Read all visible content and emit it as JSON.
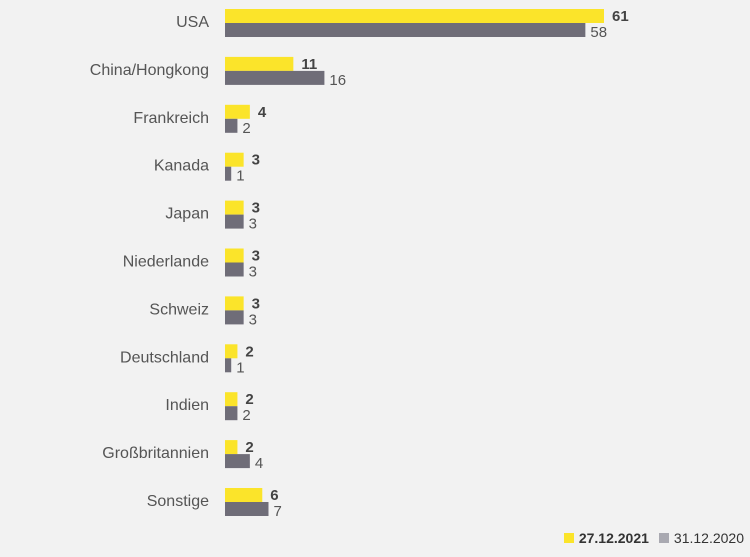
{
  "chart_data": {
    "type": "bar",
    "orientation": "horizontal",
    "categories": [
      "USA",
      "China/Hongkong",
      "Frankreich",
      "Kanada",
      "Japan",
      "Niederlande",
      "Schweiz",
      "Deutschland",
      "Indien",
      "Großbritannien",
      "Sonstige"
    ],
    "series": [
      {
        "name": "27.12.2021",
        "values": [
          61,
          11,
          4,
          3,
          3,
          3,
          3,
          2,
          2,
          2,
          6
        ],
        "color": "#fbe42a"
      },
      {
        "name": "31.12.2020",
        "values": [
          58,
          16,
          2,
          1,
          3,
          3,
          3,
          1,
          2,
          4,
          7
        ],
        "color": "#6f6d78"
      }
    ],
    "xlim": [
      0,
      61
    ],
    "grid": false,
    "legend_position": "bottom-right"
  },
  "legend": {
    "items": [
      {
        "label": "27.12.2021",
        "color": "#fbe42a"
      },
      {
        "label": "31.12.2020",
        "color": "#a9a9b1"
      }
    ]
  }
}
